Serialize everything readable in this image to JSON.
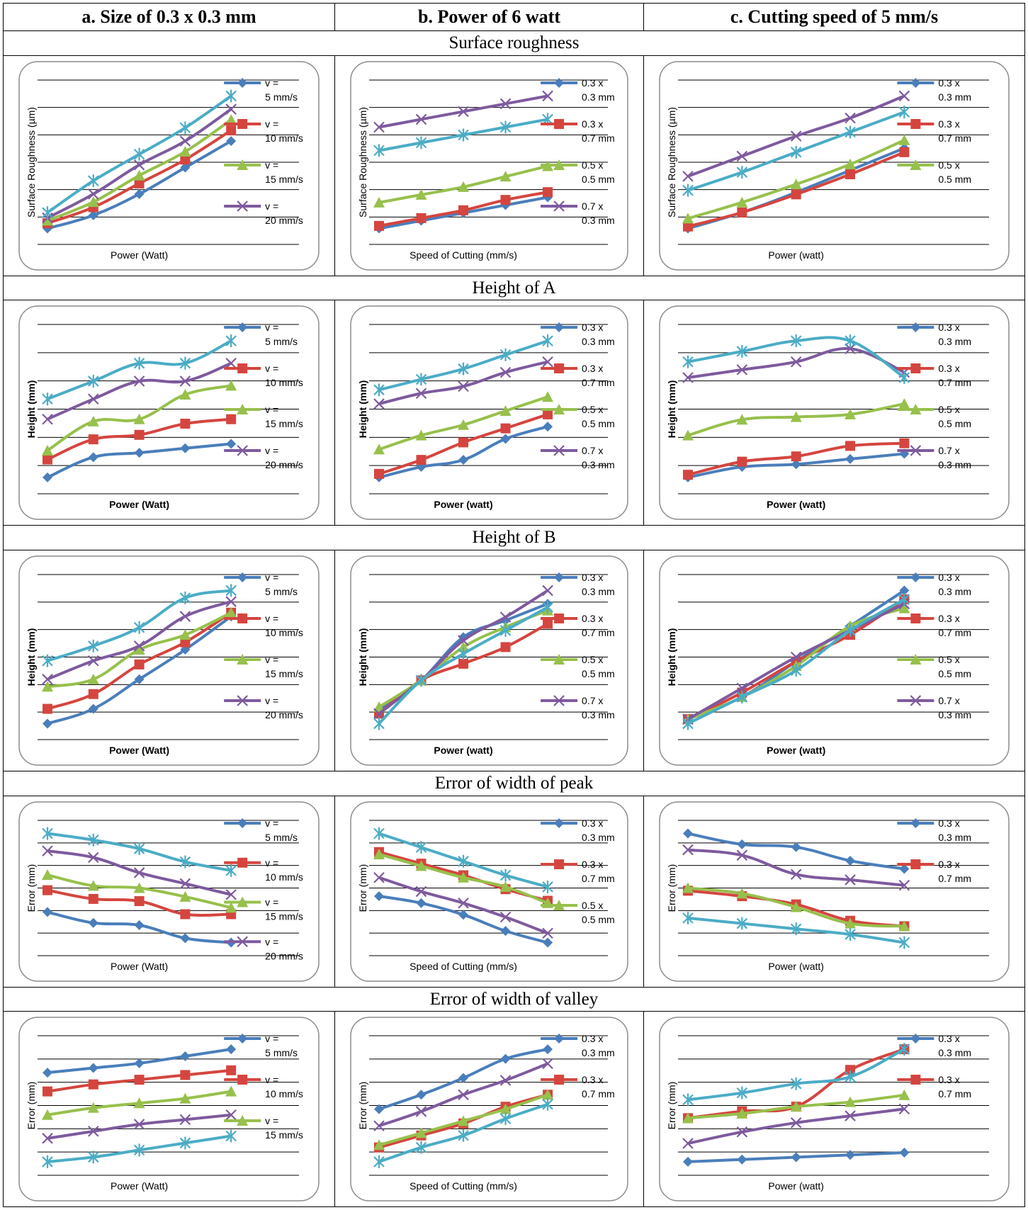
{
  "colors": [
    "#4a7ebb",
    "#d5453f",
    "#97c04c",
    "#7e5a9e",
    "#4bacc6"
  ],
  "columns": [
    {
      "label": "a. Size of 0.3 x 0.3 mm"
    },
    {
      "label": "b. Power of 6 watt"
    },
    {
      "label": "c. Cutting speed of 5 mm/s"
    }
  ],
  "sections": [
    {
      "title": "Surface roughness"
    },
    {
      "title": "Height of A"
    },
    {
      "title": "Height of B"
    },
    {
      "title": "Error of width of peak"
    },
    {
      "title": "Error of width of valley"
    }
  ],
  "chart_data": [
    {
      "section": 0,
      "column": 0,
      "type": "line",
      "xlabel": "Power (Watt)",
      "ylabel": "Surface Roughness (µm)",
      "xlabel_bold": false,
      "legend": [
        "v = 5 mm/s",
        "v = 10 mm/s",
        "v = 15 mm/s",
        "v = 20 mm/s"
      ],
      "series": [
        {
          "name": "v = 5 mm/s",
          "marker": "diamond",
          "values": [
            0.7,
            1.2,
            2.0,
            3.0,
            4.0
          ]
        },
        {
          "name": "v = 10 mm/s",
          "marker": "square",
          "values": [
            0.9,
            1.5,
            2.4,
            3.3,
            4.4
          ]
        },
        {
          "name": "v = 15 mm/s",
          "marker": "triangle",
          "values": [
            1.0,
            1.7,
            2.7,
            3.6,
            4.8
          ]
        },
        {
          "name": "v = 20 mm/s",
          "marker": "x",
          "values": [
            1.1,
            2.0,
            3.1,
            4.0,
            5.2
          ]
        },
        {
          "name": "",
          "marker": "star",
          "values": [
            1.3,
            2.5,
            3.5,
            4.5,
            5.7
          ]
        }
      ]
    },
    {
      "section": 0,
      "column": 1,
      "type": "line",
      "xlabel": "Speed of Cutting (mm/s)",
      "ylabel": "Surface Roughness (µm)",
      "xlabel_bold": false,
      "legend": [
        "0.3 x 0.3 mm",
        "0.3 x 0.7 mm",
        "0.5 x 0.5 mm",
        "0.7 x 0.3 mm"
      ],
      "series": [
        {
          "name": "0.3 x 0.3 mm",
          "marker": "diamond",
          "values": [
            0.2,
            0.5,
            0.8,
            1.1,
            1.4
          ]
        },
        {
          "name": "0.3 x 0.7 mm",
          "marker": "square",
          "values": [
            0.3,
            0.6,
            0.9,
            1.3,
            1.6
          ]
        },
        {
          "name": "0.5 x 0.5 mm",
          "marker": "triangle",
          "values": [
            1.2,
            1.5,
            1.8,
            2.2,
            2.6
          ]
        },
        {
          "name": "0.7 x 0.3 mm",
          "marker": "x",
          "values": [
            4.1,
            4.4,
            4.7,
            5.0,
            5.3
          ]
        },
        {
          "name": "",
          "marker": "star",
          "values": [
            3.2,
            3.5,
            3.8,
            4.1,
            4.4
          ]
        }
      ]
    },
    {
      "section": 0,
      "column": 2,
      "type": "line",
      "xlabel": "Power (watt)",
      "ylabel": "Surface Roughness (µm)",
      "xlabel_bold": false,
      "legend": [
        "0.3 x 0.3 mm",
        "0.3 x 0.7 mm",
        "0.5 x 0.5 mm"
      ],
      "series": [
        {
          "name": "0.3 x 0.3 mm",
          "marker": "diamond",
          "values": [
            0.4,
            1.2,
            2.2,
            3.3,
            4.4
          ]
        },
        {
          "name": "0.3 x 0.7 mm",
          "marker": "square",
          "values": [
            0.5,
            1.2,
            2.1,
            3.1,
            4.2
          ]
        },
        {
          "name": "0.5 x 0.5 mm",
          "marker": "triangle",
          "values": [
            0.9,
            1.7,
            2.6,
            3.6,
            4.8
          ]
        },
        {
          "name": "",
          "marker": "x",
          "values": [
            3.0,
            4.0,
            5.0,
            5.9,
            7.0
          ]
        },
        {
          "name": "",
          "marker": "star",
          "values": [
            2.3,
            3.2,
            4.2,
            5.2,
            6.2
          ]
        }
      ]
    },
    {
      "section": 1,
      "column": 0,
      "type": "line",
      "xlabel": "Power (Watt)",
      "ylabel": "Height (mm)",
      "xlabel_bold": true,
      "legend": [
        "v = 5 mm/s",
        "v = 10 mm/s",
        "v = 15 mm/s",
        "v = 20 mm/s"
      ],
      "series": [
        {
          "name": "v = 5 mm/s",
          "marker": "diamond",
          "values": [
            0.45,
            0.9,
            1.0,
            1.1,
            1.2
          ]
        },
        {
          "name": "v = 10 mm/s",
          "marker": "square",
          "values": [
            0.85,
            1.3,
            1.4,
            1.65,
            1.75
          ]
        },
        {
          "name": "v = 15 mm/s",
          "marker": "triangle",
          "values": [
            1.05,
            1.7,
            1.75,
            2.3,
            2.5
          ]
        },
        {
          "name": "v = 20 mm/s",
          "marker": "x",
          "values": [
            1.75,
            2.2,
            2.6,
            2.6,
            3.0
          ]
        },
        {
          "name": "",
          "marker": "star",
          "values": [
            2.2,
            2.6,
            3.0,
            3.0,
            3.5
          ]
        }
      ]
    },
    {
      "section": 1,
      "column": 1,
      "type": "line",
      "xlabel": "Power (watt)",
      "ylabel": "Height (mm)",
      "xlabel_bold": true,
      "legend": [
        "0.3 x 0.3 mm",
        "0.3 x 0.7 mm",
        "0.5 x 0.5 mm",
        "0.7 x 0.3 mm"
      ],
      "series": [
        {
          "name": "0.3 x 0.3 mm",
          "marker": "diamond",
          "values": [
            0.3,
            0.6,
            0.8,
            1.4,
            1.75
          ]
        },
        {
          "name": "0.3 x 0.7 mm",
          "marker": "square",
          "values": [
            0.4,
            0.8,
            1.3,
            1.7,
            2.1
          ]
        },
        {
          "name": "0.5 x 0.5 mm",
          "marker": "triangle",
          "values": [
            1.1,
            1.5,
            1.8,
            2.2,
            2.6
          ]
        },
        {
          "name": "0.7 x 0.3 mm",
          "marker": "x",
          "values": [
            2.4,
            2.7,
            2.9,
            3.3,
            3.6
          ]
        },
        {
          "name": "",
          "marker": "star",
          "values": [
            2.8,
            3.1,
            3.4,
            3.8,
            4.2
          ]
        }
      ]
    },
    {
      "section": 1,
      "column": 2,
      "type": "line",
      "xlabel": "Power (watt)",
      "ylabel": "Height (mm)",
      "xlabel_bold": true,
      "legend": [
        "0.3 x 0.3 mm",
        "0.3 x 0.7 mm",
        "0.5 x 0.5 mm",
        "0.7 x 0.3 mm"
      ],
      "series": [
        {
          "name": "0.3 x 0.3 mm",
          "marker": "diamond",
          "values": [
            0.4,
            0.6,
            0.65,
            0.75,
            0.85
          ]
        },
        {
          "name": "0.3 x 0.7 mm",
          "marker": "square",
          "values": [
            0.45,
            0.7,
            0.8,
            1.0,
            1.05
          ]
        },
        {
          "name": "0.5 x 0.5 mm",
          "marker": "triangle",
          "values": [
            1.2,
            1.5,
            1.55,
            1.6,
            1.8
          ]
        },
        {
          "name": "0.7 x 0.3 mm",
          "marker": "x",
          "values": [
            2.3,
            2.45,
            2.6,
            2.85,
            2.4
          ]
        },
        {
          "name": "",
          "marker": "star",
          "values": [
            2.6,
            2.8,
            3.0,
            3.0,
            2.3
          ]
        }
      ]
    },
    {
      "section": 2,
      "column": 0,
      "type": "line",
      "xlabel": "Power (Watt)",
      "ylabel": "Height (mm)",
      "xlabel_bold": true,
      "legend": [
        "v = 5 mm/s",
        "v = 10 mm/s",
        "v = 15 mm/s",
        "v = 20 mm/s"
      ],
      "series": [
        {
          "name": "v = 5 mm/s",
          "marker": "diamond",
          "values": [
            0.0,
            0.4,
            1.2,
            2.0,
            2.9
          ]
        },
        {
          "name": "v = 10 mm/s",
          "marker": "square",
          "values": [
            0.4,
            0.8,
            1.6,
            2.2,
            3.0
          ]
        },
        {
          "name": "v = 15 mm/s",
          "marker": "triangle",
          "values": [
            1.0,
            1.2,
            2.0,
            2.4,
            3.0
          ]
        },
        {
          "name": "v = 20 mm/s",
          "marker": "x",
          "values": [
            1.2,
            1.7,
            2.1,
            2.9,
            3.3
          ]
        },
        {
          "name": "",
          "marker": "star",
          "values": [
            1.7,
            2.1,
            2.6,
            3.4,
            3.6
          ]
        }
      ]
    },
    {
      "section": 2,
      "column": 1,
      "type": "line",
      "xlabel": "Power (watt)",
      "ylabel": "Height (mm)",
      "xlabel_bold": true,
      "legend": [
        "0.3 x 0.3 mm",
        "0.3 x 0.7 mm",
        "0.5 x 0.5 mm",
        "0.7 x 0.3 mm"
      ],
      "series": [
        {
          "name": "0.3 x 0.3 mm",
          "marker": "diamond",
          "values": [
            0.1,
            1.0,
            2.3,
            2.8,
            3.3
          ]
        },
        {
          "name": "0.3 x 0.7 mm",
          "marker": "square",
          "values": [
            0.0,
            1.0,
            1.5,
            2.0,
            2.7
          ]
        },
        {
          "name": "0.5 x 0.5 mm",
          "marker": "triangle",
          "values": [
            0.2,
            1.0,
            2.0,
            2.6,
            3.1
          ]
        },
        {
          "name": "0.7 x 0.3 mm",
          "marker": "x",
          "values": [
            0.0,
            1.0,
            2.2,
            2.9,
            3.7
          ]
        },
        {
          "name": "",
          "marker": "star",
          "values": [
            -0.3,
            1.0,
            1.8,
            2.5,
            3.2
          ]
        }
      ]
    },
    {
      "section": 2,
      "column": 2,
      "type": "line",
      "xlabel": "Power (watt)",
      "ylabel": "Height (mm)",
      "xlabel_bold": true,
      "legend": [
        "0.3 x 0.3 mm",
        "0.3 x 0.7 mm",
        "0.5 x 0.5 mm",
        "0.7 x 0.3 mm"
      ],
      "series": [
        {
          "name": "0.3 x 0.3 mm",
          "marker": "diamond",
          "values": [
            0.0,
            0.5,
            1.3,
            2.1,
            2.9
          ]
        },
        {
          "name": "0.3 x 0.7 mm",
          "marker": "square",
          "values": [
            0.0,
            0.6,
            1.3,
            1.9,
            2.7
          ]
        },
        {
          "name": "0.5 x 0.5 mm",
          "marker": "triangle",
          "values": [
            0.0,
            0.5,
            1.2,
            2.1,
            2.5
          ]
        },
        {
          "name": "0.7 x 0.3 mm",
          "marker": "x",
          "values": [
            0.0,
            0.7,
            1.4,
            2.0,
            2.6
          ]
        },
        {
          "name": "",
          "marker": "star",
          "values": [
            -0.1,
            0.5,
            1.1,
            2.0,
            2.7
          ]
        }
      ]
    },
    {
      "section": 3,
      "column": 0,
      "type": "line",
      "xlabel": "Power (Watt)",
      "ylabel": "Error (mm)",
      "xlabel_bold": false,
      "legend": [
        "v = 5 mm/s",
        "v = 10 mm/s",
        "v = 15 mm/s",
        "v = 20 mm/s"
      ],
      "series": [
        {
          "name": "v = 5 mm/s",
          "marker": "diamond",
          "values": [
            1.6,
            1.1,
            1.0,
            0.4,
            0.2
          ]
        },
        {
          "name": "v = 10 mm/s",
          "marker": "square",
          "values": [
            2.6,
            2.2,
            2.1,
            1.5,
            1.5
          ]
        },
        {
          "name": "v = 15 mm/s",
          "marker": "triangle",
          "values": [
            3.3,
            2.8,
            2.7,
            2.3,
            1.8
          ]
        },
        {
          "name": "v = 20 mm/s",
          "marker": "x",
          "values": [
            4.4,
            4.1,
            3.4,
            2.9,
            2.4
          ]
        },
        {
          "name": "",
          "marker": "star",
          "values": [
            5.2,
            4.9,
            4.5,
            3.9,
            3.5
          ]
        }
      ]
    },
    {
      "section": 3,
      "column": 1,
      "type": "line",
      "xlabel": "Speed of Cutting (mm/s)",
      "ylabel": "Error (mm)",
      "xlabel_bold": false,
      "legend": [
        "0.3 x 0.3 mm",
        "0.3 x 0.7 mm",
        "0.5 x 0.5 mm"
      ],
      "series": [
        {
          "name": "0.3 x 0.3 mm",
          "marker": "diamond",
          "values": [
            2.1,
            1.8,
            1.3,
            0.6,
            0.1
          ]
        },
        {
          "name": "0.3 x 0.7 mm",
          "marker": "square",
          "values": [
            4.0,
            3.5,
            3.0,
            2.4,
            1.9
          ]
        },
        {
          "name": "0.5 x 0.5 mm",
          "marker": "triangle",
          "values": [
            3.9,
            3.4,
            2.9,
            2.5,
            1.8
          ]
        },
        {
          "name": "",
          "marker": "x",
          "values": [
            2.9,
            2.3,
            1.8,
            1.2,
            0.5
          ]
        },
        {
          "name": "",
          "marker": "star",
          "values": [
            4.8,
            4.2,
            3.6,
            3.0,
            2.5
          ]
        }
      ]
    },
    {
      "section": 3,
      "column": 2,
      "type": "line",
      "xlabel": "Power (watt)",
      "ylabel": "Error (mm)",
      "xlabel_bold": false,
      "legend": [
        "0.3 x 0.3 mm",
        "0.3 x 0.7 mm"
      ],
      "series": [
        {
          "name": "0.3 x 0.3 mm",
          "marker": "diamond",
          "values": [
            4.6,
            4.2,
            4.1,
            3.6,
            3.3
          ]
        },
        {
          "name": "0.3 x 0.7 mm",
          "marker": "square",
          "values": [
            2.5,
            2.3,
            2.0,
            1.4,
            1.2
          ]
        },
        {
          "name": "",
          "marker": "triangle",
          "values": [
            2.6,
            2.4,
            1.9,
            1.3,
            1.2
          ]
        },
        {
          "name": "",
          "marker": "x",
          "values": [
            4.0,
            3.8,
            3.1,
            2.9,
            2.7
          ]
        },
        {
          "name": "",
          "marker": "star",
          "values": [
            1.5,
            1.3,
            1.1,
            0.9,
            0.6
          ]
        }
      ]
    },
    {
      "section": 4,
      "column": 0,
      "type": "line",
      "xlabel": "Power (Watt)",
      "ylabel": "Error (mm)",
      "xlabel_bold": false,
      "legend": [
        "v = 5 mm/s",
        "v = 10 mm/s",
        "v = 15 mm/s"
      ],
      "series": [
        {
          "name": "v = 5 mm/s",
          "marker": "diamond",
          "values": [
            4.7,
            4.9,
            5.1,
            5.4,
            5.7
          ]
        },
        {
          "name": "v = 10 mm/s",
          "marker": "square",
          "values": [
            3.9,
            4.2,
            4.4,
            4.6,
            4.8
          ]
        },
        {
          "name": "v = 15 mm/s",
          "marker": "triangle",
          "values": [
            2.9,
            3.2,
            3.4,
            3.6,
            3.9
          ]
        },
        {
          "name": "",
          "marker": "x",
          "values": [
            1.9,
            2.2,
            2.5,
            2.7,
            2.9
          ]
        },
        {
          "name": "",
          "marker": "star",
          "values": [
            0.9,
            1.1,
            1.4,
            1.7,
            2.0
          ]
        }
      ]
    },
    {
      "section": 4,
      "column": 1,
      "type": "line",
      "xlabel": "Speed of Cutting (mm/s)",
      "ylabel": "Error (mm)",
      "xlabel_bold": false,
      "legend": [
        "0.3 x 0.3 mm",
        "0.3 x 0.7 mm"
      ],
      "series": [
        {
          "name": "0.3 x 0.3 mm",
          "marker": "diamond",
          "values": [
            3.0,
            3.6,
            4.3,
            5.1,
            5.5
          ]
        },
        {
          "name": "0.3 x 0.7 mm",
          "marker": "square",
          "values": [
            1.4,
            1.9,
            2.4,
            3.1,
            3.6
          ]
        },
        {
          "name": "",
          "marker": "triangle",
          "values": [
            1.5,
            2.0,
            2.5,
            3.0,
            3.6
          ]
        },
        {
          "name": "",
          "marker": "x",
          "values": [
            2.3,
            2.9,
            3.6,
            4.2,
            4.9
          ]
        },
        {
          "name": "",
          "marker": "star",
          "values": [
            0.8,
            1.4,
            1.9,
            2.6,
            3.2
          ]
        }
      ]
    },
    {
      "section": 4,
      "column": 2,
      "type": "line",
      "xlabel": "Power (watt)",
      "ylabel": "Error (mm)",
      "xlabel_bold": false,
      "legend": [
        "0.3 x 0.3 mm",
        "0.3 x 0.7 mm"
      ],
      "series": [
        {
          "name": "0.3 x 0.3 mm",
          "marker": "diamond",
          "values": [
            0.9,
            1.0,
            1.1,
            1.2,
            1.3
          ]
        },
        {
          "name": "0.3 x 0.7 mm",
          "marker": "square",
          "values": [
            2.8,
            3.1,
            3.3,
            4.9,
            5.8
          ]
        },
        {
          "name": "",
          "marker": "triangle",
          "values": [
            2.8,
            3.0,
            3.3,
            3.5,
            3.8
          ]
        },
        {
          "name": "",
          "marker": "x",
          "values": [
            1.7,
            2.2,
            2.6,
            2.9,
            3.2
          ]
        },
        {
          "name": "",
          "marker": "star",
          "values": [
            3.6,
            3.9,
            4.3,
            4.6,
            5.8
          ]
        }
      ]
    }
  ]
}
